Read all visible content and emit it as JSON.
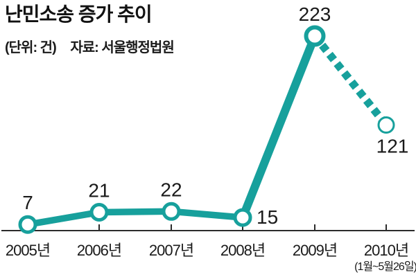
{
  "header": {
    "title": "난민소송 증가 추이",
    "unit_label": "(단위: 건)",
    "source_label": "자료: 서울행정법원"
  },
  "chart_data": {
    "type": "line",
    "title": "난민소송 증가 추이",
    "unit": "건",
    "source": "서울행정법원",
    "categories": [
      "2005년",
      "2006년",
      "2007년",
      "2008년",
      "2009년",
      "2010년"
    ],
    "category_note": {
      "category": "2010년",
      "text": "(1월~5월26일)"
    },
    "values": [
      7,
      21,
      22,
      15,
      223,
      121
    ],
    "value_label_placements": [
      "above",
      "above",
      "above",
      "right",
      "above",
      "below-right"
    ],
    "dashed_segment": {
      "from": "2009년",
      "to": "2010년"
    },
    "marker": "open-circle",
    "xlabel": "",
    "ylabel": "건",
    "ylim": [
      0,
      240
    ],
    "grid": false,
    "legend": "none",
    "colors": {
      "line": "#17a09c",
      "marker_fill": "#ffffff",
      "axis": "#2b2b2b",
      "text": "#1a1a1a"
    }
  }
}
